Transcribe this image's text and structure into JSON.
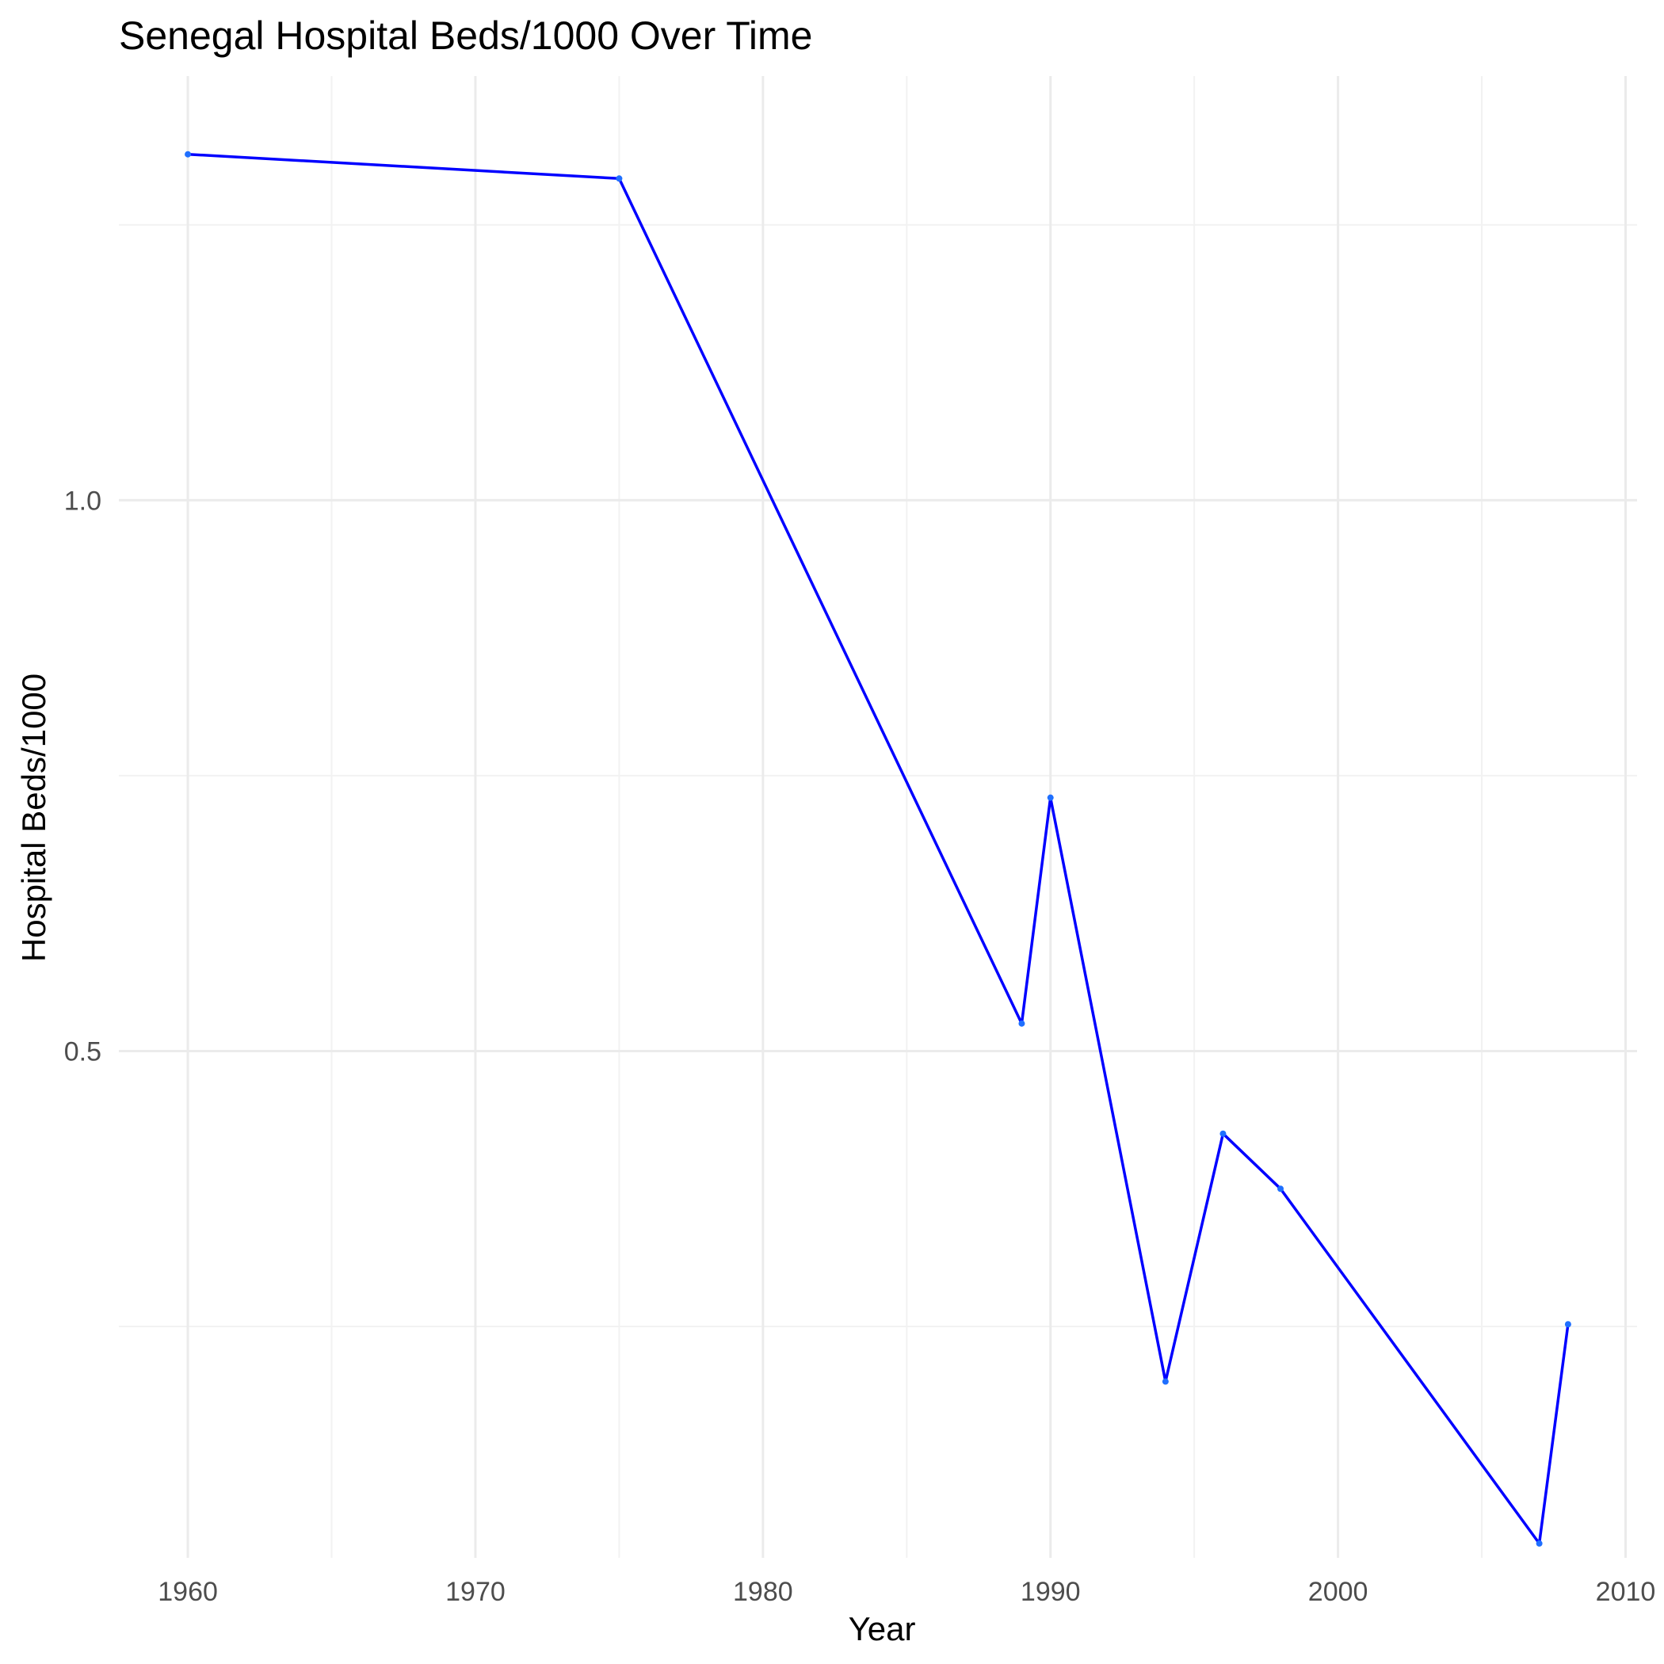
{
  "chart_data": {
    "type": "line",
    "title": "Senegal Hospital Beds/1000 Over Time",
    "xlabel": "Year",
    "ylabel": "Hospital Beds/1000",
    "x_ticks": [
      1960,
      1970,
      1980,
      1990,
      2000,
      2010
    ],
    "x_tick_labels": [
      "1960",
      "1970",
      "1980",
      "1990",
      "2000",
      "2010"
    ],
    "y_ticks": [
      0.5,
      1.0
    ],
    "y_tick_labels": [
      "0.5",
      "1.0"
    ],
    "xlim": [
      1957.6,
      2010.4
    ],
    "ylim": [
      0.04,
      1.385
    ],
    "grid": true,
    "colors": {
      "line": "#0000ff",
      "point": "#1f6fff"
    },
    "series": [
      {
        "x": [
          1960,
          1975,
          1989,
          1990,
          1994,
          1996,
          1998,
          2007,
          2008
        ],
        "values": [
          1.314,
          1.292,
          0.525,
          0.73,
          0.2,
          0.425,
          0.375,
          0.053,
          0.252
        ]
      }
    ]
  }
}
